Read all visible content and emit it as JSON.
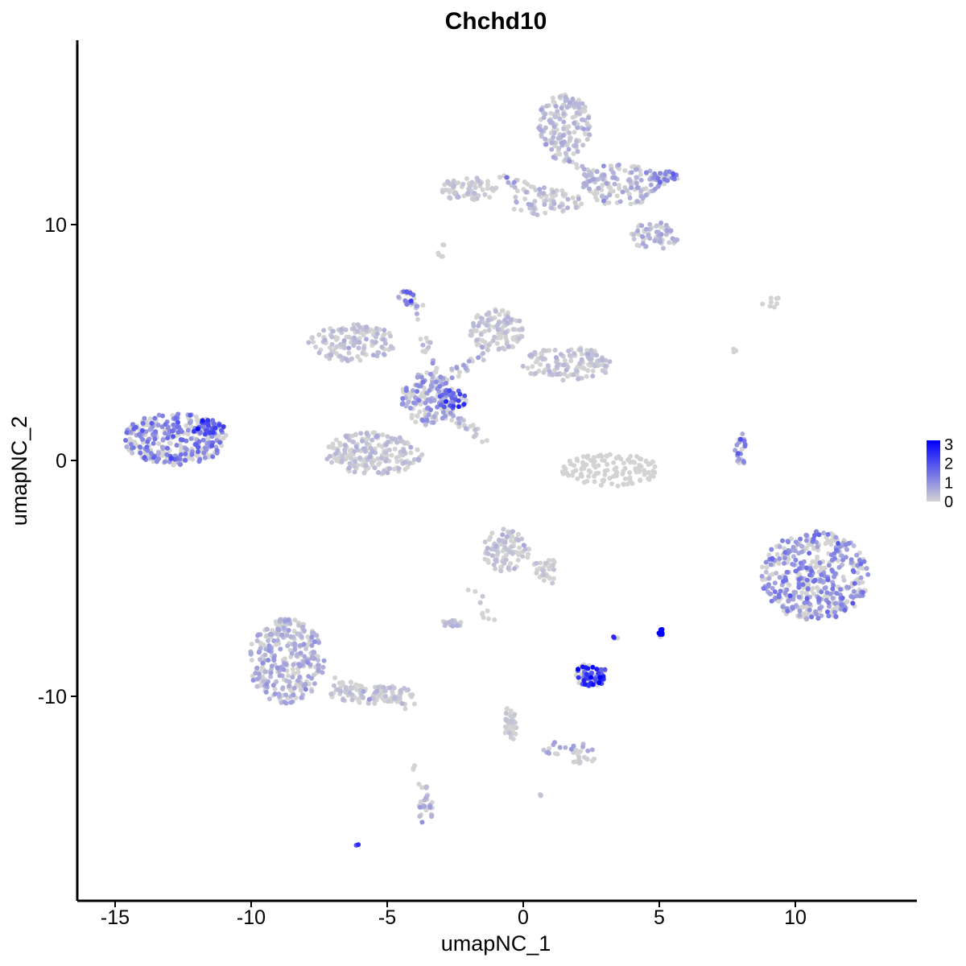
{
  "chart_data": {
    "type": "scatter",
    "title": "Chchd10",
    "xlabel": "umapNC_1",
    "ylabel": "umapNC_2",
    "xlim": [
      -16.5,
      14.5
    ],
    "ylim": [
      -18.5,
      17.5
    ],
    "xticks": [
      -15,
      -10,
      -5,
      0,
      5,
      10
    ],
    "yticks": [
      -10,
      0,
      10
    ],
    "color_scale": {
      "low": "#d3d3d3",
      "high": "#0000ff",
      "min": 0,
      "max": 3.2
    },
    "legend": {
      "position": "right",
      "ticks": [
        3,
        2,
        1,
        0
      ]
    },
    "clusters": [
      {
        "cx": -12.8,
        "cy": 0.9,
        "rx": 1.9,
        "ry": 1.1,
        "n": 330,
        "mean": 0.9
      },
      {
        "cx": -11.6,
        "cy": 1.4,
        "rx": 0.6,
        "ry": 0.35,
        "n": 60,
        "mean": 1.3
      },
      {
        "cx": -6.3,
        "cy": 5.0,
        "rx": 1.6,
        "ry": 0.8,
        "n": 130,
        "mean": 0.25
      },
      {
        "cx": -4.3,
        "cy": 6.9,
        "rx": 0.3,
        "ry": 0.4,
        "n": 22,
        "mean": 1.0
      },
      {
        "cx": -5.5,
        "cy": 0.3,
        "rx": 1.8,
        "ry": 0.9,
        "n": 200,
        "mean": 0.25
      },
      {
        "cx": -3.5,
        "cy": 2.6,
        "rx": 1.0,
        "ry": 1.1,
        "n": 150,
        "mean": 0.6
      },
      {
        "cx": -2.6,
        "cy": 2.6,
        "rx": 0.6,
        "ry": 0.4,
        "n": 40,
        "mean": 1.4
      },
      {
        "cx": -1.0,
        "cy": 5.5,
        "rx": 1.0,
        "ry": 0.9,
        "n": 120,
        "mean": 0.2
      },
      {
        "cx": 1.6,
        "cy": 4.1,
        "rx": 1.7,
        "ry": 0.7,
        "n": 130,
        "mean": 0.2
      },
      {
        "cx": 1.5,
        "cy": 14.2,
        "rx": 1.0,
        "ry": 1.3,
        "n": 160,
        "mean": 0.3
      },
      {
        "cx": -2.0,
        "cy": 11.5,
        "rx": 1.1,
        "ry": 0.5,
        "n": 70,
        "mean": 0.15
      },
      {
        "cx": 0.8,
        "cy": 11.0,
        "rx": 1.4,
        "ry": 0.6,
        "n": 60,
        "mean": 0.3
      },
      {
        "cx": 3.6,
        "cy": 11.7,
        "rx": 1.4,
        "ry": 0.9,
        "n": 130,
        "mean": 0.4
      },
      {
        "cx": 5.2,
        "cy": 12.0,
        "rx": 0.5,
        "ry": 0.3,
        "n": 35,
        "mean": 0.9
      },
      {
        "cx": 4.8,
        "cy": 9.5,
        "rx": 0.9,
        "ry": 0.6,
        "n": 70,
        "mean": 0.35
      },
      {
        "cx": -3.0,
        "cy": 8.9,
        "rx": 0.15,
        "ry": 0.3,
        "n": 6,
        "mean": 0.0
      },
      {
        "cx": 3.2,
        "cy": -0.4,
        "rx": 1.8,
        "ry": 0.7,
        "n": 130,
        "mean": 0.03
      },
      {
        "cx": 8.0,
        "cy": 0.5,
        "rx": 0.25,
        "ry": 0.7,
        "n": 25,
        "mean": 0.9
      },
      {
        "cx": 10.7,
        "cy": -4.9,
        "rx": 2.0,
        "ry": 1.9,
        "n": 460,
        "mean": 0.75
      },
      {
        "cx": -0.7,
        "cy": -3.8,
        "rx": 0.8,
        "ry": 0.9,
        "n": 90,
        "mean": 0.2
      },
      {
        "cx": 0.9,
        "cy": -4.6,
        "rx": 0.3,
        "ry": 0.7,
        "n": 18,
        "mean": 0.1
      },
      {
        "cx": -8.7,
        "cy": -8.5,
        "rx": 1.4,
        "ry": 1.8,
        "n": 320,
        "mean": 0.45
      },
      {
        "cx": -5.6,
        "cy": -9.9,
        "rx": 1.6,
        "ry": 0.4,
        "n": 80,
        "mean": 0.15
      },
      {
        "cx": -2.6,
        "cy": -6.9,
        "rx": 0.4,
        "ry": 0.15,
        "n": 20,
        "mean": 0.3
      },
      {
        "cx": 2.5,
        "cy": -9.1,
        "rx": 0.6,
        "ry": 0.5,
        "n": 90,
        "mean": 1.6
      },
      {
        "cx": 3.4,
        "cy": -7.5,
        "rx": 0.1,
        "ry": 0.1,
        "n": 6,
        "mean": 1.4
      },
      {
        "cx": 5.05,
        "cy": -7.3,
        "rx": 0.07,
        "ry": 0.22,
        "n": 18,
        "mean": 2.6
      },
      {
        "cx": -0.5,
        "cy": -11.2,
        "rx": 0.25,
        "ry": 0.8,
        "n": 30,
        "mean": 0.1
      },
      {
        "cx": 1.6,
        "cy": -12.2,
        "rx": 1.0,
        "ry": 0.3,
        "n": 22,
        "mean": 0.4
      },
      {
        "cx": 2.2,
        "cy": -12.7,
        "rx": 0.5,
        "ry": 0.15,
        "n": 14,
        "mean": 0.05
      },
      {
        "cx": -3.6,
        "cy": -14.8,
        "rx": 0.3,
        "ry": 0.6,
        "n": 26,
        "mean": 0.5
      },
      {
        "cx": -6.1,
        "cy": -16.3,
        "rx": 0.05,
        "ry": 0.05,
        "n": 3,
        "mean": 1.3
      },
      {
        "cx": 0.6,
        "cy": -14.2,
        "rx": 0.05,
        "ry": 0.05,
        "n": 3,
        "mean": 0.3
      },
      {
        "cx": 9.3,
        "cy": 6.7,
        "rx": 0.8,
        "ry": 0.2,
        "n": 8,
        "mean": 0.0
      },
      {
        "cx": 7.8,
        "cy": 4.7,
        "rx": 0.1,
        "ry": 0.15,
        "n": 3,
        "mean": 0.0
      },
      {
        "cx": -4.0,
        "cy": -13.0,
        "rx": 0.05,
        "ry": 0.2,
        "n": 4,
        "mean": 0.0
      }
    ],
    "bridges": [
      {
        "from": [
          -4.0,
          6.7
        ],
        "to": [
          -3.2,
          3.5
        ],
        "n": 25,
        "mean": 0.4
      },
      {
        "from": [
          -2.5,
          2.0
        ],
        "to": [
          -1.3,
          0.6
        ],
        "n": 25,
        "mean": 0.2
      },
      {
        "from": [
          -3.2,
          3.2
        ],
        "to": [
          -1.4,
          4.5
        ],
        "n": 30,
        "mean": 0.5
      },
      {
        "from": [
          -1.0,
          12.0
        ],
        "to": [
          1.0,
          11.2
        ],
        "n": 25,
        "mean": 0.3
      },
      {
        "from": [
          1.2,
          13.0
        ],
        "to": [
          3.2,
          11.5
        ],
        "n": 30,
        "mean": 0.3
      },
      {
        "from": [
          -7.5,
          -9.0
        ],
        "to": [
          -3.9,
          -10.5
        ],
        "n": 40,
        "mean": 0.15
      },
      {
        "from": [
          -1.2,
          -6.8
        ],
        "to": [
          -1.9,
          -5.3
        ],
        "n": 10,
        "mean": 0.05
      },
      {
        "from": [
          -0.6,
          -10.5
        ],
        "to": [
          -0.3,
          -12.2
        ],
        "n": 12,
        "mean": 0.05
      },
      {
        "from": [
          -3.5,
          -14.0
        ],
        "to": [
          -3.7,
          -13.4
        ],
        "n": 6,
        "mean": 0.1
      },
      {
        "from": [
          0.0,
          -3.6
        ],
        "to": [
          1.1,
          -5.4
        ],
        "n": 18,
        "mean": 0.1
      }
    ]
  }
}
